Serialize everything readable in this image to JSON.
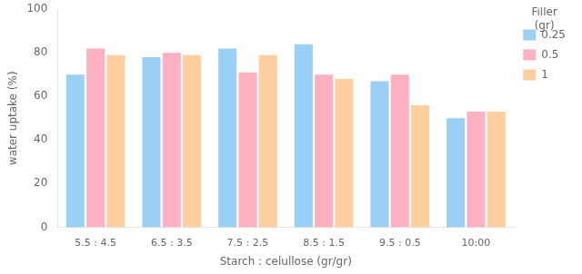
{
  "chart_data": {
    "type": "bar",
    "categories": [
      "5.5 : 4.5",
      "6.5 : 3.5",
      "7.5 : 2.5",
      "8.5 : 1.5",
      "9.5 : 0.5",
      "10:00"
    ],
    "series": [
      {
        "name": "0.25",
        "values": [
          70,
          78,
          82,
          84,
          67,
          50
        ]
      },
      {
        "name": "0.5",
        "values": [
          82,
          80,
          71,
          70,
          70,
          53
        ]
      },
      {
        "name": "1",
        "values": [
          79,
          79,
          79,
          68,
          56,
          53
        ]
      }
    ],
    "xlabel": "Starch : celullose (gr/gr)",
    "ylabel": "water uptake (%)",
    "legend_title": "Filler\n(gr)",
    "legend": "right",
    "ylim": [
      0,
      100
    ],
    "yticks": [
      0,
      20,
      40,
      60,
      80,
      100
    ],
    "grid": false
  }
}
